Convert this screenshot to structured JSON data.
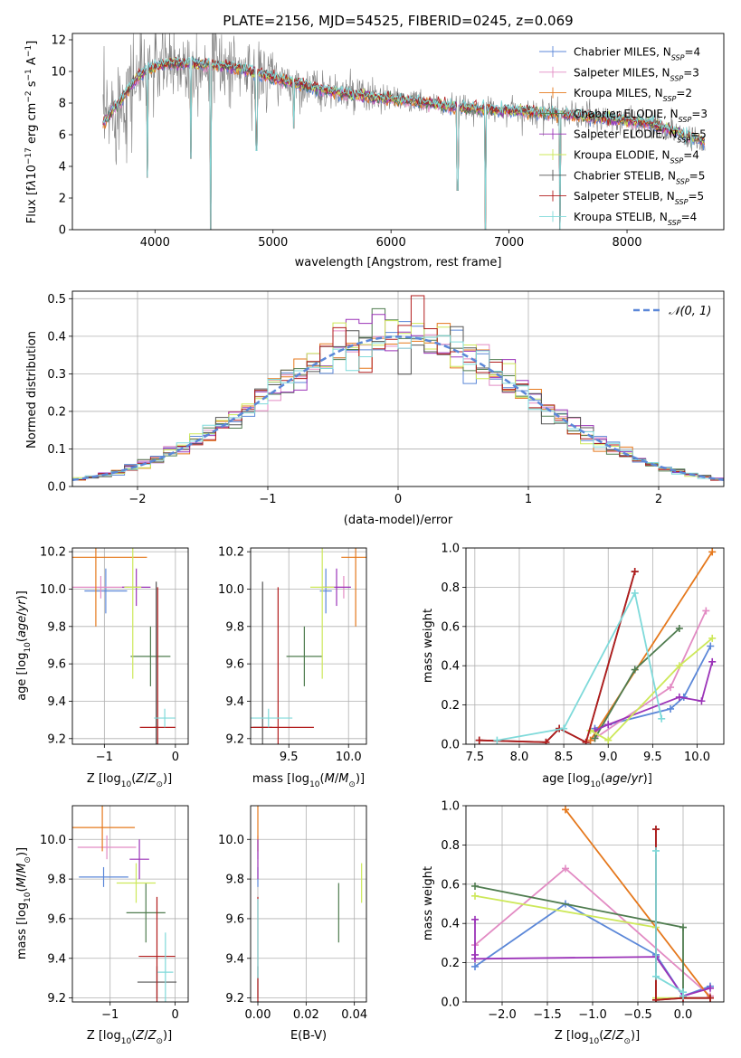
{
  "colors": {
    "Chabrier MILES": "#5b87d8",
    "Salpeter MILES": "#e28bc3",
    "Kroupa MILES": "#e5781c",
    "Chabrier ELODIE": "#4f7c4f",
    "Salpeter ELODIE": "#9b33b8",
    "Kroupa ELODIE": "#cde85a",
    "Chabrier STELIB": "#555555",
    "Salpeter STELIB": "#b21c1c",
    "Kroupa STELIB": "#7fdada"
  },
  "chart_data": [
    {
      "type": "line",
      "title": "PLATE=2156, MJD=54525, FIBERID=0245, z=0.069",
      "xlabel": "wavelength [Angstrom, rest frame]",
      "ylabel": "Flux [f_λ 10^-17 erg cm^-2 s^-1 A^-1]",
      "xlim": [
        3300,
        8820
      ],
      "ylim": [
        0,
        12.4
      ],
      "xticks": [
        "4000",
        "5000",
        "6000",
        "7000",
        "8000"
      ],
      "yticks": [
        "0",
        "2",
        "4",
        "6",
        "8",
        "10",
        "12"
      ],
      "grid": false,
      "legend_position": "top-right",
      "series": [
        {
          "name": "Chabrier MILES, N_SSP=4",
          "label_main": "Chabrier MILES, N",
          "label_sub": "SSP",
          "label_tail": "=4"
        },
        {
          "name": "Salpeter MILES, N_SSP=3",
          "label_main": "Salpeter MILES, N",
          "label_sub": "SSP",
          "label_tail": "=3"
        },
        {
          "name": "Kroupa MILES, N_SSP=2",
          "label_main": "Kroupa MILES, N",
          "label_sub": "SSP",
          "label_tail": "=2"
        },
        {
          "name": "Chabrier ELODIE, N_SSP=3",
          "label_main": "Chabrier ELODIE, N",
          "label_sub": "SSP",
          "label_tail": "=3"
        },
        {
          "name": "Salpeter ELODIE, N_SSP=5",
          "label_main": "Salpeter ELODIE, N",
          "label_sub": "SSP",
          "label_tail": "=5"
        },
        {
          "name": "Kroupa ELODIE, N_SSP=4",
          "label_main": "Kroupa ELODIE, N",
          "label_sub": "SSP",
          "label_tail": "=4"
        },
        {
          "name": "Chabrier STELIB, N_SSP=5",
          "label_main": "Chabrier STELIB, N",
          "label_sub": "SSP",
          "label_tail": "=5"
        },
        {
          "name": "Salpeter STELIB, N_SSP=5",
          "label_main": "Salpeter STELIB, N",
          "label_sub": "SSP",
          "label_tail": "=5"
        },
        {
          "name": "Kroupa STELIB, N_SSP=4",
          "label_main": "Kroupa STELIB, N",
          "label_sub": "SSP",
          "label_tail": "=4"
        }
      ],
      "continuum": [
        [
          3550,
          6.6
        ],
        [
          3650,
          7.6
        ],
        [
          3750,
          8.6
        ],
        [
          3850,
          9.6
        ],
        [
          3950,
          10.2
        ],
        [
          4100,
          10.5
        ],
        [
          4300,
          10.5
        ],
        [
          4500,
          10.4
        ],
        [
          4700,
          10.2
        ],
        [
          5000,
          9.6
        ],
        [
          5300,
          9.0
        ],
        [
          5600,
          8.6
        ],
        [
          5900,
          8.3
        ],
        [
          6200,
          8.1
        ],
        [
          6500,
          7.8
        ],
        [
          6800,
          7.6
        ],
        [
          7100,
          7.5
        ],
        [
          7400,
          7.3
        ],
        [
          7700,
          7.1
        ],
        [
          8000,
          6.9
        ],
        [
          8200,
          6.7
        ],
        [
          8450,
          6.1
        ],
        [
          8650,
          5.6
        ]
      ],
      "absorption_features": [
        [
          3934,
          3.3
        ],
        [
          4305,
          4.5
        ],
        [
          4472,
          0.0
        ],
        [
          4861,
          5.0
        ],
        [
          5175,
          6.4
        ],
        [
          6563,
          2.5
        ],
        [
          6800,
          0.0
        ],
        [
          7430,
          0.0
        ],
        [
          8498,
          5.4
        ],
        [
          8542,
          5.2
        ],
        [
          8662,
          5.0
        ]
      ]
    },
    {
      "type": "line",
      "xlabel": "(data-model)/error",
      "ylabel": "Normed distribution",
      "xlim": [
        -2.5,
        2.5
      ],
      "ylim": [
        0,
        0.52
      ],
      "xticks": [
        "−2",
        "−1",
        "0",
        "1",
        "2"
      ],
      "yticks": [
        "0.0",
        "0.1",
        "0.2",
        "0.3",
        "0.4",
        "0.5"
      ],
      "grid": true,
      "legend_position": "top-right",
      "reference_curve": {
        "name": "N(0,1)",
        "label": "𝒩(0, 1)",
        "mean": 0,
        "sigma": 1
      }
    },
    {
      "type": "scatter",
      "xlabel": "Z [log10(Z/Z⊙)]",
      "ylabel": "age [log10(age/yr)]",
      "xlim": [
        -1.45,
        0.18
      ],
      "ylim": [
        9.17,
        10.22
      ],
      "xticks": [
        "−1",
        "0"
      ],
      "yticks": [
        "9.2",
        "9.4",
        "9.6",
        "9.8",
        "10.0",
        "10.2"
      ],
      "grid": true,
      "points": [
        {
          "series": "Chabrier MILES",
          "x": -0.98,
          "y": 9.99,
          "xerr": 0.3,
          "yerr": 0.12
        },
        {
          "series": "Salpeter MILES",
          "x": -1.05,
          "y": 10.01,
          "xerr": 0.4,
          "yerr": 0.06
        },
        {
          "series": "Kroupa MILES",
          "x": -1.12,
          "y": 10.17,
          "xerr": 0.72,
          "yerr": 0.37
        },
        {
          "series": "Chabrier ELODIE",
          "x": -0.35,
          "y": 9.64,
          "xerr": 0.28,
          "yerr": 0.16
        },
        {
          "series": "Salpeter ELODIE",
          "x": -0.55,
          "y": 10.01,
          "xerr": 0.2,
          "yerr": 0.1
        },
        {
          "series": "Kroupa ELODIE",
          "x": -0.6,
          "y": 10.01,
          "xerr": 0.12,
          "yerr": 0.49
        },
        {
          "series": "Chabrier STELIB",
          "x": -0.27,
          "y": 9.26,
          "xerr": 0.03,
          "yerr": 0.78
        },
        {
          "series": "Salpeter STELIB",
          "x": -0.25,
          "y": 9.26,
          "xerr": 0.25,
          "yerr": 0.75
        },
        {
          "series": "Kroupa STELIB",
          "x": -0.15,
          "y": 9.31,
          "xerr": 0.15,
          "yerr": 0.05
        }
      ]
    },
    {
      "type": "scatter",
      "xlabel": "mass [log10(M/M⊙)]",
      "xlim": [
        9.18,
        10.15
      ],
      "ylim": [
        9.17,
        10.22
      ],
      "xticks": [
        "9.5",
        "10.0"
      ],
      "yticks": [
        "9.2",
        "9.4",
        "9.6",
        "9.8",
        "10.0",
        "10.2"
      ],
      "grid": true,
      "points": [
        {
          "series": "Chabrier MILES",
          "x": 9.81,
          "y": 9.99,
          "xerr": 0.05,
          "yerr": 0.12
        },
        {
          "series": "Salpeter MILES",
          "x": 9.96,
          "y": 10.01,
          "xerr": 0.06,
          "yerr": 0.06
        },
        {
          "series": "Kroupa MILES",
          "x": 10.06,
          "y": 10.17,
          "xerr": 0.12,
          "yerr": 0.37
        },
        {
          "series": "Chabrier ELODIE",
          "x": 9.63,
          "y": 9.64,
          "xerr": 0.15,
          "yerr": 0.16
        },
        {
          "series": "Salpeter ELODIE",
          "x": 9.9,
          "y": 10.01,
          "xerr": 0.12,
          "yerr": 0.1
        },
        {
          "series": "Kroupa ELODIE",
          "x": 9.78,
          "y": 10.01,
          "xerr": 0.1,
          "yerr": 0.49
        },
        {
          "series": "Chabrier STELIB",
          "x": 9.28,
          "y": 9.26,
          "xerr": 0.08,
          "yerr": 0.78
        },
        {
          "series": "Salpeter STELIB",
          "x": 9.41,
          "y": 9.26,
          "xerr": 0.3,
          "yerr": 0.75
        },
        {
          "series": "Kroupa STELIB",
          "x": 9.33,
          "y": 9.31,
          "xerr": 0.2,
          "yerr": 0.05
        }
      ]
    },
    {
      "type": "line",
      "xlabel": "age [log10(age/yr)]",
      "ylabel": "mass weight",
      "xlim": [
        7.4,
        10.3
      ],
      "ylim": [
        0,
        1.0
      ],
      "xticks": [
        "7.5",
        "8.0",
        "8.5",
        "9.0",
        "9.5",
        "10.0"
      ],
      "yticks": [
        "0.0",
        "0.2",
        "0.4",
        "0.6",
        "0.8",
        "1.0"
      ],
      "grid": true,
      "series": [
        {
          "name": "Chabrier MILES",
          "x": [
            8.85,
            9.0,
            9.7,
            9.85,
            10.15
          ],
          "y": [
            0.08,
            0.1,
            0.18,
            0.24,
            0.5
          ]
        },
        {
          "name": "Salpeter MILES",
          "x": [
            8.85,
            9.7,
            10.1
          ],
          "y": [
            0.03,
            0.29,
            0.68
          ]
        },
        {
          "name": "Kroupa MILES",
          "x": [
            8.8,
            10.17
          ],
          "y": [
            0.02,
            0.98
          ]
        },
        {
          "name": "Chabrier ELODIE",
          "x": [
            8.85,
            9.3,
            9.8
          ],
          "y": [
            0.03,
            0.38,
            0.59
          ]
        },
        {
          "name": "Salpeter ELODIE",
          "x": [
            8.85,
            9.0,
            9.8,
            10.05,
            10.17
          ],
          "y": [
            0.07,
            0.1,
            0.24,
            0.22,
            0.42
          ]
        },
        {
          "name": "Kroupa ELODIE",
          "x": [
            8.8,
            9.0,
            9.8,
            10.17
          ],
          "y": [
            0.07,
            0.02,
            0.4,
            0.54
          ]
        },
        {
          "name": "Chabrier STELIB",
          "x": [
            7.55,
            8.3,
            8.45,
            8.75,
            9.3
          ],
          "y": [
            0.02,
            0.01,
            0.08,
            0.01,
            0.88
          ]
        },
        {
          "name": "Salpeter STELIB",
          "x": [
            7.55,
            8.3,
            8.45,
            8.75,
            9.3
          ],
          "y": [
            0.02,
            0.01,
            0.08,
            0.01,
            0.88
          ]
        },
        {
          "name": "Kroupa STELIB",
          "x": [
            7.75,
            8.5,
            9.3,
            9.6
          ],
          "y": [
            0.02,
            0.08,
            0.77,
            0.13
          ]
        }
      ]
    },
    {
      "type": "scatter",
      "xlabel": "Z [log10(Z/Z⊙)]",
      "ylabel": "mass [log10(M/M⊙)]",
      "xlim": [
        -1.58,
        0.2
      ],
      "ylim": [
        9.18,
        10.17
      ],
      "xticks": [
        "−1",
        "0"
      ],
      "yticks": [
        "9.2",
        "9.4",
        "9.6",
        "9.8",
        "10.0"
      ],
      "grid": true,
      "points": [
        {
          "series": "Chabrier MILES",
          "x": -1.1,
          "y": 9.81,
          "xerr": 0.38,
          "yerr": 0.05
        },
        {
          "series": "Salpeter MILES",
          "x": -1.05,
          "y": 9.96,
          "xerr": 0.45,
          "yerr": 0.06
        },
        {
          "series": "Kroupa MILES",
          "x": -1.12,
          "y": 10.06,
          "xerr": 0.5,
          "yerr": 0.12
        },
        {
          "series": "Chabrier ELODIE",
          "x": -0.45,
          "y": 9.63,
          "xerr": 0.3,
          "yerr": 0.15
        },
        {
          "series": "Salpeter ELODIE",
          "x": -0.55,
          "y": 9.9,
          "xerr": 0.15,
          "yerr": 0.1
        },
        {
          "series": "Kroupa ELODIE",
          "x": -0.6,
          "y": 9.78,
          "xerr": 0.3,
          "yerr": 0.1
        },
        {
          "series": "Chabrier STELIB",
          "x": -0.28,
          "y": 9.28,
          "xerr": 0.3,
          "yerr": 0.08
        },
        {
          "series": "Salpeter STELIB",
          "x": -0.28,
          "y": 9.41,
          "xerr": 0.28,
          "yerr": 0.3
        },
        {
          "series": "Kroupa STELIB",
          "x": -0.15,
          "y": 9.33,
          "xerr": 0.12,
          "yerr": 0.2
        }
      ]
    },
    {
      "type": "scatter",
      "xlabel": "E(B-V)",
      "xlim": [
        -0.003,
        0.045
      ],
      "ylim": [
        9.18,
        10.17
      ],
      "xticks": [
        "0.00",
        "0.02",
        "0.04"
      ],
      "yticks": [
        "9.2",
        "9.4",
        "9.6",
        "9.8",
        "10.0"
      ],
      "grid": true,
      "points": [
        {
          "series": "Chabrier MILES",
          "x": 0.0,
          "y": 9.81,
          "yerr": 0.05
        },
        {
          "series": "Salpeter MILES",
          "x": 0.0,
          "y": 9.96,
          "yerr": 0.06
        },
        {
          "series": "Kroupa MILES",
          "x": 0.0,
          "y": 10.06,
          "yerr": 0.12
        },
        {
          "series": "Chabrier ELODIE",
          "x": 0.0335,
          "y": 9.63,
          "yerr": 0.15
        },
        {
          "series": "Salpeter ELODIE",
          "x": 0.0,
          "y": 9.9,
          "yerr": 0.1
        },
        {
          "series": "Kroupa ELODIE",
          "x": 0.043,
          "y": 9.78,
          "yerr": 0.1
        },
        {
          "series": "Chabrier STELIB",
          "x": 0.0,
          "y": 9.28,
          "yerr": 0.08
        },
        {
          "series": "Salpeter STELIB",
          "x": 0.0,
          "y": 9.41,
          "yerr": 0.3
        },
        {
          "series": "Kroupa STELIB",
          "x": 0.0,
          "y": 9.5,
          "yerr": 0.2
        }
      ]
    },
    {
      "type": "line",
      "xlabel": "Z [log10(Z/Z⊙)]",
      "ylabel": "mass weight",
      "xlim": [
        -2.4,
        0.45
      ],
      "ylim": [
        0,
        1.0
      ],
      "xticks": [
        "−2.0",
        "−1.5",
        "−1.0",
        "−0.5",
        "0.0"
      ],
      "yticks": [
        "0.0",
        "0.2",
        "0.4",
        "0.6",
        "0.8",
        "1.0"
      ],
      "grid": true,
      "series": [
        {
          "name": "Chabrier MILES",
          "x": [
            -2.3,
            -1.3,
            -0.3,
            0.0,
            0.3
          ],
          "y": [
            0.18,
            0.5,
            0.24,
            0.03,
            0.08
          ]
        },
        {
          "name": "Salpeter MILES",
          "x": [
            -2.3,
            -1.3,
            0.3
          ],
          "y": [
            0.29,
            0.68,
            0.03
          ]
        },
        {
          "name": "Kroupa MILES",
          "x": [
            -1.3,
            0.3
          ],
          "y": [
            0.98,
            0.02
          ]
        },
        {
          "name": "Chabrier ELODIE",
          "x": [
            -2.3,
            0.0,
            0.0
          ],
          "y": [
            0.59,
            0.38,
            0.03
          ]
        },
        {
          "name": "Salpeter ELODIE",
          "x": [
            -2.3,
            -2.3,
            -2.3,
            -0.3,
            0.0,
            0.3
          ],
          "y": [
            0.42,
            0.24,
            0.22,
            0.23,
            0.03,
            0.07
          ]
        },
        {
          "name": "Kroupa ELODIE",
          "x": [
            -2.3,
            -0.3,
            -0.3,
            0.3
          ],
          "y": [
            0.54,
            0.38,
            0.02,
            0.02
          ]
        },
        {
          "name": "Chabrier STELIB",
          "x": [
            -0.3,
            -0.3,
            0.0,
            0.3
          ],
          "y": [
            0.88,
            0.01,
            0.02,
            0.02
          ]
        },
        {
          "name": "Salpeter STELIB",
          "x": [
            -0.3,
            -0.3,
            0.0,
            0.3
          ],
          "y": [
            0.88,
            0.01,
            0.02,
            0.02
          ]
        },
        {
          "name": "Kroupa STELIB",
          "x": [
            -0.3,
            -0.3,
            0.0,
            0.0
          ],
          "y": [
            0.77,
            0.13,
            0.05,
            0.03
          ]
        }
      ]
    }
  ]
}
